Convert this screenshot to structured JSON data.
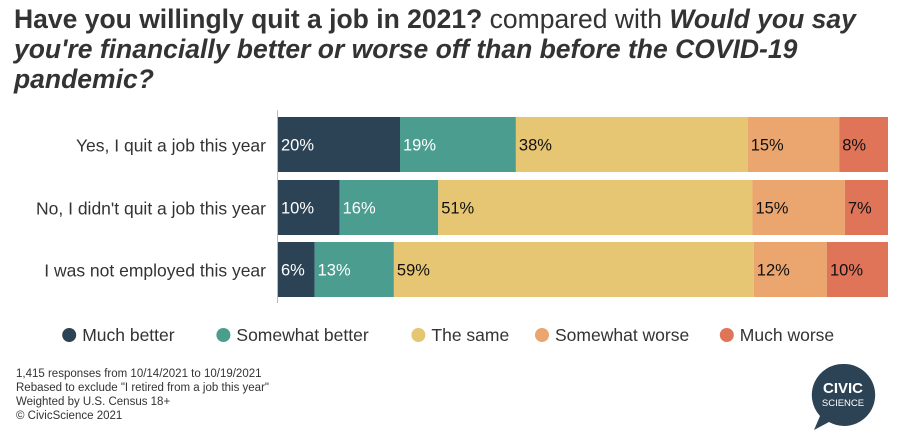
{
  "title": {
    "part1": "Have you willingly quit a job in 2021?",
    "part2": " compared with ",
    "part3": "Would you say you're financially better or worse off than before the COVID-19 pandemic?"
  },
  "chart_data": {
    "type": "bar",
    "orientation": "horizontal",
    "stacked": true,
    "normalized": true,
    "categories": [
      "Yes, I quit a job this year",
      "No, I didn't quit a job this year",
      "I was not employed this year"
    ],
    "series": [
      {
        "name": "Much better",
        "color": "#2c4355",
        "values": [
          20,
          10,
          6
        ],
        "labels": [
          "20%",
          "10%",
          "6%"
        ],
        "label_color": "#ffffff"
      },
      {
        "name": "Somewhat better",
        "color": "#4a9d8f",
        "values": [
          19,
          16,
          13
        ],
        "labels": [
          "19%",
          "16%",
          "13%"
        ],
        "label_color": "#ffffff"
      },
      {
        "name": "The same",
        "color": "#e6c672",
        "values": [
          38,
          51,
          59
        ],
        "labels": [
          "38%",
          "51%",
          "59%"
        ],
        "label_color": "#111111"
      },
      {
        "name": "Somewhat worse",
        "color": "#eba56e",
        "values": [
          15,
          15,
          12
        ],
        "labels": [
          "15%",
          "15%",
          "12%"
        ],
        "label_color": "#111111"
      },
      {
        "name": "Much worse",
        "color": "#df7459",
        "values": [
          8,
          7,
          10
        ],
        "labels": [
          "8%",
          "7%",
          "10%"
        ],
        "label_color": "#111111"
      }
    ],
    "legend_position": "bottom",
    "grid": false
  },
  "footnotes": [
    "1,415 responses from 10/14/2021 to 10/19/2021",
    "Rebased to exclude \"I retired from a job this year\"",
    "Weighted by U.S. Census 18+",
    "© CivicScience 2021"
  ],
  "logo": {
    "line1": "CIVIC",
    "line2": "SCIENCE",
    "color": "#2c4355"
  }
}
